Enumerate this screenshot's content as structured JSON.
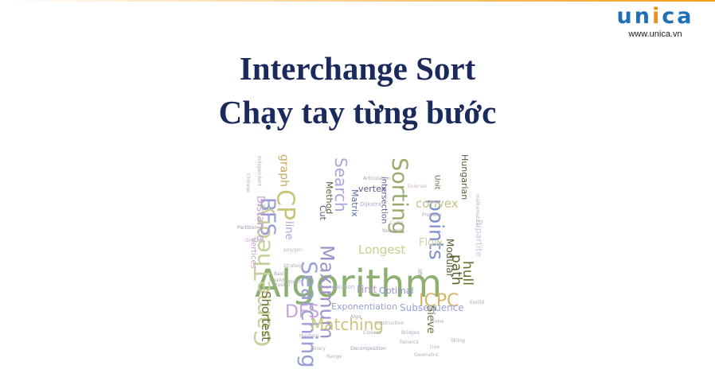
{
  "colors": {
    "accent_bar": "#f39c12",
    "title": "#1a2a5c",
    "logo_blue": "#1d6fb8",
    "logo_orange": "#f28c1a"
  },
  "logo": {
    "letters": [
      "u",
      "n",
      "i",
      "c",
      "a"
    ],
    "url": "www.unica.vn"
  },
  "slide": {
    "title_line1": "Interchange Sort",
    "title_line2": "Chạy tay từng bước"
  },
  "word_cloud": {
    "words": [
      {
        "text": "Algorithm",
        "color": "#8cb072"
      },
      {
        "text": "GameTheory",
        "color": "#c9ce9a"
      },
      {
        "text": "Searching",
        "color": "#9a9fd8"
      },
      {
        "text": "Maximum",
        "color": "#a18fc9"
      },
      {
        "text": "Sorting",
        "color": "#98aa6c"
      },
      {
        "text": "points",
        "color": "#7c8fd0"
      },
      {
        "text": "convex",
        "color": "#c9c08b"
      },
      {
        "text": "Search",
        "color": "#a6a8d6"
      },
      {
        "text": "BFS",
        "color": "#9aa0d6"
      },
      {
        "text": "CP",
        "color": "#c7c57a"
      },
      {
        "text": "Distance",
        "color": "#c8a3cc"
      },
      {
        "text": "Longest",
        "color": "#c9ce8e"
      },
      {
        "text": "DFS",
        "color": "#c8a3dc"
      },
      {
        "text": "Matching",
        "color": "#c9c57e"
      },
      {
        "text": "ICPC",
        "color": "#d6b46a"
      },
      {
        "text": "Exponentiation",
        "color": "#9a9fd6"
      },
      {
        "text": "Subsequence",
        "color": "#9a9fd6"
      },
      {
        "text": "Shortest",
        "color": "#6b6b2e"
      },
      {
        "text": "hull",
        "color": "#6b6b2e"
      },
      {
        "text": "path",
        "color": "#5e5e2a"
      },
      {
        "text": "graph",
        "color": "#c6a85a"
      },
      {
        "text": "line",
        "color": "#b0a0d8"
      },
      {
        "text": "Matrix",
        "color": "#5a6aa8"
      },
      {
        "text": "vertex",
        "color": "#5a5a8a"
      },
      {
        "text": "intersection",
        "color": "#6b5a9a"
      },
      {
        "text": "Hungarian",
        "color": "#5a5a3a"
      },
      {
        "text": "Bipartite",
        "color": "#c8c8e0"
      },
      {
        "text": "Modular",
        "color": "#5a5a3a"
      },
      {
        "text": "Flow",
        "color": "#c8d0a8"
      },
      {
        "text": "First",
        "color": "#b092d6"
      },
      {
        "text": "Optimal",
        "color": "#8a8fd0"
      },
      {
        "text": "Sieve",
        "color": "#6b6b3a"
      },
      {
        "text": "Method",
        "color": "#5a5a3a"
      },
      {
        "text": "Cut",
        "color": "#4a5a8a"
      },
      {
        "text": "Vertices",
        "color": "#c8a3cc"
      },
      {
        "text": "Partition",
        "color": "#9a9ab0"
      },
      {
        "text": "Dijkstra",
        "color": "#a8a8c8"
      },
      {
        "text": "Eulerian",
        "color": "#c8b0c8"
      },
      {
        "text": "Articulation",
        "color": "#a8a8a8"
      },
      {
        "text": "Triangulation",
        "color": "#b0b0c8"
      },
      {
        "text": "Decomposition",
        "color": "#9a9ab0"
      },
      {
        "text": "Bridges",
        "color": "#a8a8c0"
      },
      {
        "text": "Closest",
        "color": "#a8a8a8"
      },
      {
        "text": "Strategy",
        "color": "#b0b0b0"
      },
      {
        "text": "Bound",
        "color": "#a8a8a8"
      },
      {
        "text": "Knuth",
        "color": "#b0a8c0"
      },
      {
        "text": "Problem",
        "color": "#a8a8a8"
      },
      {
        "text": "polygon",
        "color": "#b8b8b8"
      },
      {
        "text": "construction",
        "color": "#b0b0b0"
      },
      {
        "text": "Graham",
        "color": "#c0a8c0"
      },
      {
        "text": "Fenwick",
        "color": "#b0b0b0"
      },
      {
        "text": "Chinese",
        "color": "#b0b0b0"
      },
      {
        "text": "Independent",
        "color": "#b0b0b0"
      },
      {
        "text": "Basic",
        "color": "#a8a8a8"
      },
      {
        "text": "Algo",
        "color": "#a8a8a8"
      },
      {
        "text": "binary",
        "color": "#b0b0b0"
      },
      {
        "text": "tree",
        "color": "#b8b0c8"
      },
      {
        "text": "mathematical",
        "color": "#c0b0c0"
      },
      {
        "text": "Unit",
        "color": "#5a5a3a"
      },
      {
        "text": "lift",
        "color": "#9a9ab0"
      },
      {
        "text": "Cycle",
        "color": "#b0b0b0"
      },
      {
        "text": "Geometric",
        "color": "#b0b0c0"
      },
      {
        "text": "Kruskal",
        "color": "#a8a8a8"
      },
      {
        "text": "Range",
        "color": "#b0b0b0"
      },
      {
        "text": "Prime",
        "color": "#a8a8c0"
      },
      {
        "text": "Network",
        "color": "#b0b0b0"
      },
      {
        "text": "Euclid",
        "color": "#a8a8a8"
      },
      {
        "text": "Hashing",
        "color": "#b0a8c0"
      },
      {
        "text": "String",
        "color": "#a8a8a8"
      }
    ]
  }
}
